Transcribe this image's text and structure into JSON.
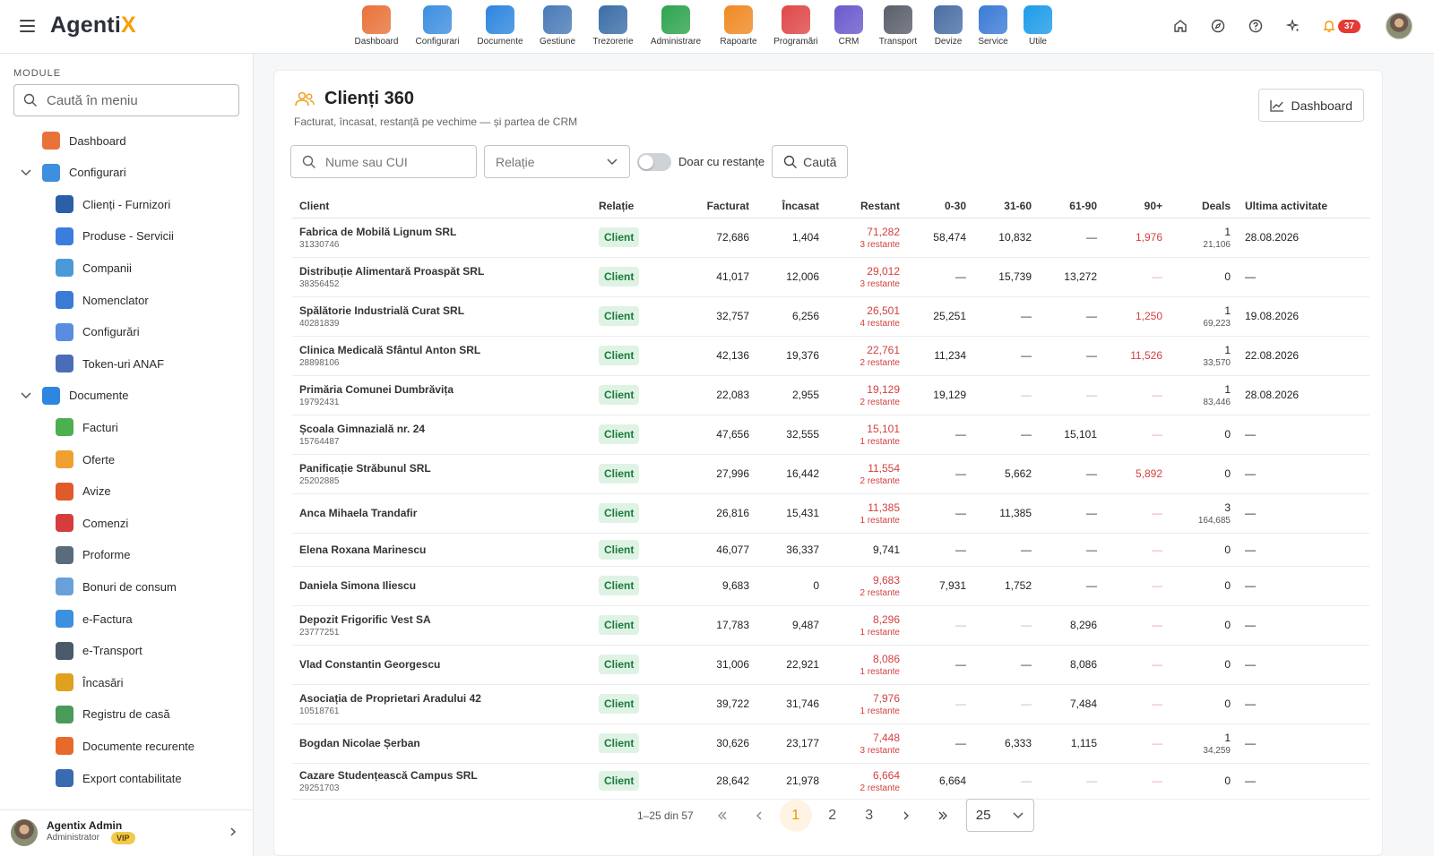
{
  "app": {
    "logo_main": "Agenti",
    "logo_accent": "X"
  },
  "modules": [
    {
      "label": "Dashboard",
      "icon": "dashboard-icon",
      "color": "#e8733a"
    },
    {
      "label": "Configurari",
      "icon": "wrench-icon",
      "color": "#3d8fe0"
    },
    {
      "label": "Documente",
      "icon": "documents-icon",
      "color": "#2e86de"
    },
    {
      "label": "Gestiune",
      "icon": "warehouse-icon",
      "color": "#4a7bb7"
    },
    {
      "label": "Trezorerie",
      "icon": "bank-icon",
      "color": "#3b6ea8"
    },
    {
      "label": "Administrare",
      "icon": "shield-check-icon",
      "color": "#2ea44f"
    },
    {
      "label": "Rapoarte",
      "icon": "reports-icon",
      "color": "#f08a24"
    },
    {
      "label": "Programări",
      "icon": "clock-icon",
      "color": "#e04848"
    },
    {
      "label": "CRM",
      "icon": "crm-icon",
      "color": "#6a5acd"
    },
    {
      "label": "Transport",
      "icon": "truck-icon",
      "color": "#5a5f6b"
    },
    {
      "label": "Devize",
      "icon": "estimate-icon",
      "color": "#4a6fa5"
    },
    {
      "label": "Service",
      "icon": "car-service-icon",
      "color": "#3c7bd6"
    },
    {
      "label": "Utile",
      "icon": "help-circle-icon",
      "color": "#1e9be9"
    }
  ],
  "topbar": {
    "notifications": "37"
  },
  "sidebar": {
    "title": "MODULE",
    "search_placeholder": "Caută în meniu",
    "items": [
      {
        "label": "Dashboard",
        "level": 0,
        "expand": false,
        "color": "#e8733a",
        "icon": "dashboard-icon"
      },
      {
        "label": "Configurari",
        "level": 0,
        "expand": true,
        "color": "#3d8fe0",
        "icon": "wrench-icon"
      },
      {
        "label": "Clienți - Furnizori",
        "level": 1,
        "expand": false,
        "color": "#2b5fa8",
        "icon": "people-icon"
      },
      {
        "label": "Produse - Servicii",
        "level": 1,
        "expand": false,
        "color": "#3b7ddd",
        "icon": "products-icon"
      },
      {
        "label": "Companii",
        "level": 1,
        "expand": false,
        "color": "#4a9ad8",
        "icon": "company-icon"
      },
      {
        "label": "Nomenclator",
        "level": 1,
        "expand": false,
        "color": "#3a7bd5",
        "icon": "list-icon"
      },
      {
        "label": "Configurări",
        "level": 1,
        "expand": false,
        "color": "#5a8de0",
        "icon": "settings-list-icon"
      },
      {
        "label": "Token-uri ANAF",
        "level": 1,
        "expand": false,
        "color": "#4b6cb7",
        "icon": "shield-lock-icon"
      },
      {
        "label": "Documente",
        "level": 0,
        "expand": true,
        "color": "#2e86de",
        "icon": "documents-icon"
      },
      {
        "label": "Facturi",
        "level": 1,
        "expand": false,
        "color": "#4caf50",
        "icon": "invoice-icon"
      },
      {
        "label": "Oferte",
        "level": 1,
        "expand": false,
        "color": "#f0a030",
        "icon": "offer-icon"
      },
      {
        "label": "Avize",
        "level": 1,
        "expand": false,
        "color": "#e05a2a",
        "icon": "delivery-truck-icon"
      },
      {
        "label": "Comenzi",
        "level": 1,
        "expand": false,
        "color": "#d63c3c",
        "icon": "cart-icon"
      },
      {
        "label": "Proforme",
        "level": 1,
        "expand": false,
        "color": "#5a6b7c",
        "icon": "calculator-icon"
      },
      {
        "label": "Bonuri de consum",
        "level": 1,
        "expand": false,
        "color": "#6aa0d8",
        "icon": "receipt-icon"
      },
      {
        "label": "e-Factura",
        "level": 1,
        "expand": false,
        "color": "#3d8fe0",
        "icon": "cloud-icon"
      },
      {
        "label": "e-Transport",
        "level": 1,
        "expand": false,
        "color": "#4a5a6a",
        "icon": "transport-icon"
      },
      {
        "label": "Încasări",
        "level": 1,
        "expand": false,
        "color": "#e0a020",
        "icon": "coins-chart-icon"
      },
      {
        "label": "Registru de casă",
        "level": 1,
        "expand": false,
        "color": "#4a9a5a",
        "icon": "cash-register-icon"
      },
      {
        "label": "Documente recurente",
        "level": 1,
        "expand": false,
        "color": "#e86a2a",
        "icon": "recurring-icon"
      },
      {
        "label": "Export contabilitate",
        "level": 1,
        "expand": false,
        "color": "#3a6ab0",
        "icon": "export-icon"
      }
    ],
    "user": {
      "name": "Agentix Admin",
      "role": "Administrator",
      "badge": "VIP"
    }
  },
  "page": {
    "title": "Clienți 360",
    "subtitle": "Facturat, încasat, restanță pe vechime — și partea de CRM",
    "dashboard_button": "Dashboard",
    "filters": {
      "search_placeholder": "Nume sau CUI",
      "relation_placeholder": "Relație",
      "toggle_label": "Doar cu restanțe",
      "search_button": "Caută"
    }
  },
  "table": {
    "columns": [
      "Client",
      "Relație",
      "Facturat",
      "Încasat",
      "Restant",
      "0-30",
      "31-60",
      "61-90",
      "90+",
      "Deals",
      "Ultima activitate"
    ],
    "rows": [
      {
        "name": "Fabrica de Mobilă Lignum SRL",
        "cui": "31330746",
        "rel": "Client",
        "fact": "72,686",
        "inc": "1,404",
        "rest": "71,282",
        "rest_sub": "3 restante",
        "r030": "58,474",
        "r3160": "10,832",
        "r6190": "—",
        "r90": "1,976",
        "deals": "1",
        "deals_sub": "21,106",
        "last": "28.08.2026",
        "h": 44
      },
      {
        "name": "Distribuție Alimentară Proaspăt SRL",
        "cui": "38356452",
        "rel": "Client",
        "fact": "41,017",
        "inc": "12,006",
        "rest": "29,012",
        "rest_sub": "3 restante",
        "r030": "—",
        "r3160": "15,739",
        "r6190": "13,272",
        "r90": "—",
        "deals": "0",
        "deals_sub": "",
        "last": "—",
        "h": 44
      },
      {
        "name": "Spălătorie Industrială Curat SRL",
        "cui": "40281839",
        "rel": "Client",
        "fact": "32,757",
        "inc": "6,256",
        "rest": "26,501",
        "rest_sub": "4 restante",
        "r030": "25,251",
        "r3160": "—",
        "r6190": "—",
        "r90": "1,250",
        "deals": "1",
        "deals_sub": "69,223",
        "last": "19.08.2026",
        "h": 44
      },
      {
        "name": "Clinica Medicală Sfântul Anton SRL",
        "cui": "28898106",
        "rel": "Client",
        "fact": "42,136",
        "inc": "19,376",
        "rest": "22,761",
        "rest_sub": "2 restante",
        "r030": "11,234",
        "r3160": "—",
        "r6190": "—",
        "r90": "11,526",
        "deals": "1",
        "deals_sub": "33,570",
        "last": "22.08.2026",
        "h": 44
      },
      {
        "name": "Primăria Comunei Dumbrăvița",
        "cui": "19792431",
        "rel": "Client",
        "fact": "22,083",
        "inc": "2,955",
        "rest": "19,129",
        "rest_sub": "2 restante",
        "r030": "19,129",
        "r3160": "—",
        "r6190": "—",
        "r90": "—",
        "deals": "1",
        "deals_sub": "83,446",
        "last": "28.08.2026",
        "h": 44
      },
      {
        "name": "Școala Gimnazială nr. 24",
        "cui": "15764487",
        "rel": "Client",
        "fact": "47,656",
        "inc": "32,555",
        "rest": "15,101",
        "rest_sub": "1 restante",
        "r030": "—",
        "r3160": "—",
        "r6190": "15,101",
        "r90": "—",
        "deals": "0",
        "deals_sub": "",
        "last": "—",
        "h": 44
      },
      {
        "name": "Panificație Străbunul SRL",
        "cui": "25202885",
        "rel": "Client",
        "fact": "27,996",
        "inc": "16,442",
        "rest": "11,554",
        "rest_sub": "2 restante",
        "r030": "—",
        "r3160": "5,662",
        "r6190": "—",
        "r90": "5,892",
        "deals": "0",
        "deals_sub": "",
        "last": "—",
        "h": 44
      },
      {
        "name": "Anca Mihaela Trandafir",
        "cui": "",
        "rel": "Client",
        "fact": "26,816",
        "inc": "15,431",
        "rest": "11,385",
        "rest_sub": "1 restante",
        "r030": "—",
        "r3160": "11,385",
        "r6190": "—",
        "r90": "—",
        "deals": "3",
        "deals_sub": "164,685",
        "last": "—",
        "h": 44
      },
      {
        "name": "Elena Roxana Marinescu",
        "cui": "",
        "rel": "Client",
        "fact": "46,077",
        "inc": "36,337",
        "rest": "9,741",
        "rest_sub": "",
        "r030": "—",
        "r3160": "—",
        "r6190": "—",
        "r90": "—",
        "deals": "0",
        "deals_sub": "",
        "last": "—",
        "h": 37
      },
      {
        "name": "Daniela Simona Iliescu",
        "cui": "",
        "rel": "Client",
        "fact": "9,683",
        "inc": "0",
        "rest": "9,683",
        "rest_sub": "2 restante",
        "r030": "7,931",
        "r3160": "1,752",
        "r6190": "—",
        "r90": "—",
        "deals": "0",
        "deals_sub": "",
        "last": "—",
        "h": 44
      },
      {
        "name": "Depozit Frigorific Vest SA",
        "cui": "23777251",
        "rel": "Client",
        "fact": "17,783",
        "inc": "9,487",
        "rest": "8,296",
        "rest_sub": "1 restante",
        "r030": "—",
        "r3160": "—",
        "r6190": "8,296",
        "r90": "—",
        "deals": "0",
        "deals_sub": "",
        "last": "—",
        "h": 44
      },
      {
        "name": "Vlad Constantin Georgescu",
        "cui": "",
        "rel": "Client",
        "fact": "31,006",
        "inc": "22,921",
        "rest": "8,086",
        "rest_sub": "1 restante",
        "r030": "—",
        "r3160": "—",
        "r6190": "8,086",
        "r90": "—",
        "deals": "0",
        "deals_sub": "",
        "last": "—",
        "h": 44
      },
      {
        "name": "Asociația de Proprietari Aradului 42",
        "cui": "10518761",
        "rel": "Client",
        "fact": "39,722",
        "inc": "31,746",
        "rest": "7,976",
        "rest_sub": "1 restante",
        "r030": "—",
        "r3160": "—",
        "r6190": "7,484",
        "r90": "—",
        "deals": "0",
        "deals_sub": "",
        "last": "—",
        "h": 44
      },
      {
        "name": "Bogdan Nicolae Șerban",
        "cui": "",
        "rel": "Client",
        "fact": "30,626",
        "inc": "23,177",
        "rest": "7,448",
        "rest_sub": "3 restante",
        "r030": "—",
        "r3160": "6,333",
        "r6190": "1,115",
        "r90": "—",
        "deals": "1",
        "deals_sub": "34,259",
        "last": "—",
        "h": 44
      },
      {
        "name": "Cazare Studențească Campus SRL",
        "cui": "29251703",
        "rel": "Client",
        "fact": "28,642",
        "inc": "21,978",
        "rest": "6,664",
        "rest_sub": "2 restante",
        "r030": "6,664",
        "r3160": "—",
        "r6190": "—",
        "r90": "—",
        "deals": "0",
        "deals_sub": "",
        "last": "—",
        "h": 40
      }
    ]
  },
  "pagination": {
    "range": "1–25 din 57",
    "pages": [
      "1",
      "2",
      "3"
    ],
    "current": "1",
    "per_page": "25"
  }
}
